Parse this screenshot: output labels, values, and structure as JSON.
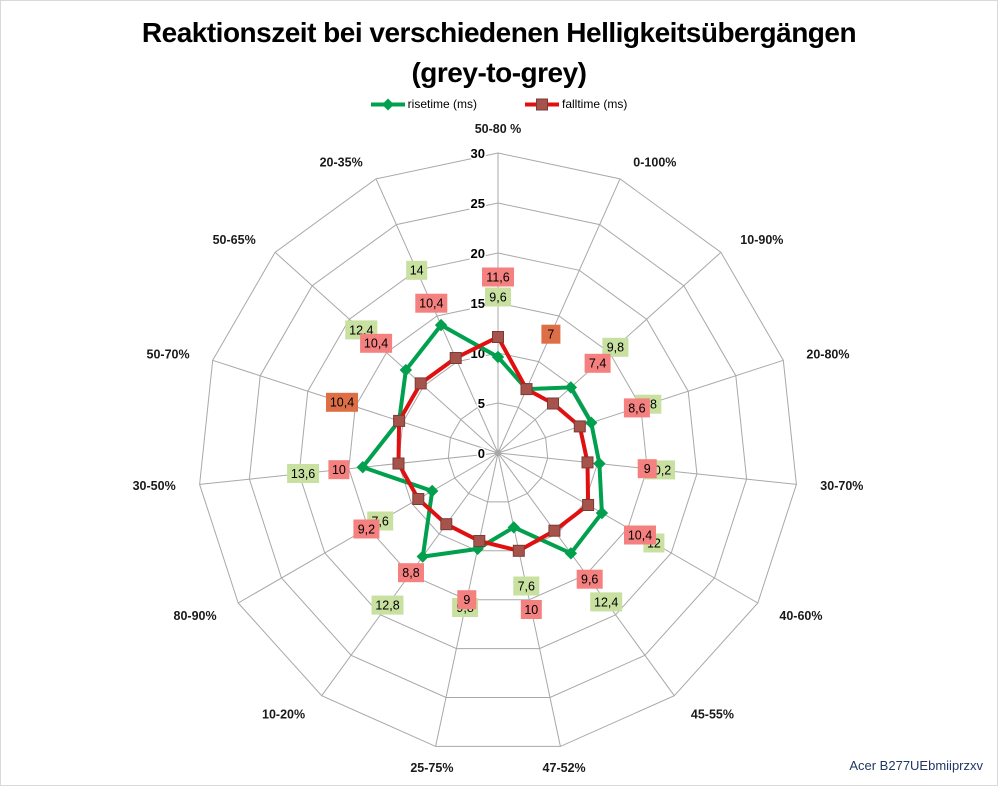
{
  "title": {
    "line1": "Reaktionszeit bei verschiedenen Helligkeitsübergängen",
    "line2": "(grey-to-grey)"
  },
  "legend": [
    {
      "label": "risetime (ms)"
    },
    {
      "label": "falltime (ms)"
    }
  ],
  "footer": {
    "model": "Acer B277UEbmiiprzxv"
  },
  "colors": {
    "rise_line": "#00a04e",
    "fall_line": "#e01010",
    "fall_marker": "#a6534c",
    "rise_label_bg": "#c8e0a0",
    "fall_label_bg": "#f48080",
    "overlap_label_bg": "#dd6e46",
    "grid": "#a8a8a8",
    "footer_text": "#1f3864"
  },
  "chart_data": {
    "type": "radar",
    "title": "Reaktionszeit bei verschiedenen Helligkeitsübergängen (grey-to-grey)",
    "categories": [
      "50-80 %",
      "0-100%",
      "10-90%",
      "20-80%",
      "30-70%",
      "40-60%",
      "45-55%",
      "47-52%",
      "25-75%",
      "10-20%",
      "80-90%",
      "30-50%",
      "50-70%",
      "50-65%",
      "20-35%"
    ],
    "series": [
      {
        "name": "risetime (ms)",
        "values": [
          9.6,
          7,
          9.8,
          9.8,
          10.2,
          12,
          12.4,
          7.6,
          9.8,
          12.8,
          7.6,
          13.6,
          10.4,
          12.4,
          14
        ],
        "labels": [
          "9,6",
          "7",
          "9,8",
          "9,8",
          "10,2",
          "12",
          "12,4",
          "7,6",
          "9,8",
          "12,8",
          "7,6",
          "13,6",
          "10,4",
          "12,4",
          "14"
        ]
      },
      {
        "name": "falltime (ms)",
        "values": [
          11.6,
          7,
          7.4,
          8.6,
          9,
          10.4,
          9.6,
          10,
          9,
          8.8,
          9.2,
          10,
          10.4,
          10.4,
          10.4
        ],
        "labels": [
          "11,6",
          "7",
          "7,4",
          "8,6",
          "9",
          "10,4",
          "9,6",
          "10",
          "9",
          "8,8",
          "9,2",
          "10",
          "10,4",
          "10,4",
          "10,4"
        ]
      }
    ],
    "r_axis": {
      "min": 0,
      "max": 30,
      "ticks": [
        0,
        5,
        10,
        15,
        20,
        25,
        30
      ]
    },
    "grid": true,
    "legend_position": "top"
  }
}
